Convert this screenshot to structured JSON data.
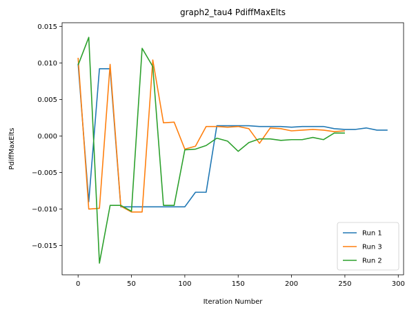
{
  "chart_data": {
    "type": "line",
    "title": "graph2_tau4 PdiffMaxElts",
    "xlabel": "Iteration Number",
    "ylabel": "PdiffMaxElts",
    "xlim": [
      -15,
      305
    ],
    "ylim": [
      -0.019,
      0.0155
    ],
    "xticks": [
      0,
      50,
      100,
      150,
      200,
      250,
      300
    ],
    "xtick_labels": [
      "0",
      "50",
      "100",
      "150",
      "200",
      "250",
      "300"
    ],
    "yticks": [
      -0.015,
      -0.01,
      -0.005,
      0.0,
      0.005,
      0.01,
      0.015
    ],
    "ytick_labels": [
      "−0.015",
      "−0.010",
      "−0.005",
      "0.000",
      "0.005",
      "0.010",
      "0.015"
    ],
    "grid": false,
    "legend_position": "lower-right",
    "series": [
      {
        "name": "Run 1",
        "color": "#1f77b4",
        "x": [
          0,
          10,
          20,
          30,
          40,
          50,
          60,
          70,
          80,
          90,
          100,
          110,
          120,
          130,
          140,
          150,
          160,
          170,
          180,
          190,
          200,
          210,
          220,
          230,
          240,
          250,
          260,
          270,
          280,
          290
        ],
        "y": [
          0.0099,
          -0.009,
          0.0092,
          0.0092,
          -0.0097,
          -0.0097,
          -0.0097,
          -0.0097,
          -0.0097,
          -0.0097,
          -0.0097,
          -0.0077,
          -0.0077,
          0.0014,
          0.0014,
          0.0014,
          0.0014,
          0.0013,
          0.0013,
          0.0013,
          0.0012,
          0.0013,
          0.0013,
          0.0013,
          0.001,
          0.0009,
          0.0009,
          0.0011,
          0.0008,
          0.0008
        ]
      },
      {
        "name": "Run 3",
        "color": "#ff7f0e",
        "x": [
          0,
          10,
          20,
          30,
          40,
          50,
          60,
          70,
          80,
          90,
          100,
          110,
          120,
          130,
          140,
          150,
          160,
          170,
          180,
          190,
          200,
          210,
          220,
          230,
          240,
          250
        ],
        "y": [
          0.0107,
          -0.01,
          -0.0099,
          0.0098,
          -0.0096,
          -0.0104,
          -0.0104,
          0.0104,
          0.0018,
          0.0019,
          -0.0018,
          -0.0014,
          0.0013,
          0.0013,
          0.0012,
          0.0013,
          0.001,
          -0.001,
          0.0011,
          0.001,
          0.0007,
          0.0008,
          0.0009,
          0.0008,
          0.0006,
          0.0007
        ]
      },
      {
        "name": "Run 2",
        "color": "#2ca02c",
        "x": [
          0,
          10,
          20,
          30,
          40,
          50,
          60,
          70,
          80,
          90,
          100,
          110,
          120,
          130,
          140,
          150,
          160,
          170,
          180,
          190,
          200,
          210,
          220,
          230,
          240,
          250
        ],
        "y": [
          0.0097,
          0.0135,
          -0.0174,
          -0.0095,
          -0.0095,
          -0.0103,
          0.012,
          0.0095,
          -0.0095,
          -0.0095,
          -0.0019,
          -0.0018,
          -0.0013,
          -0.0003,
          -0.0007,
          -0.0021,
          -0.0009,
          -0.0004,
          -0.0004,
          -0.0006,
          -0.0005,
          -0.0005,
          -0.0002,
          -0.0005,
          0.0004,
          0.0004
        ]
      }
    ]
  }
}
